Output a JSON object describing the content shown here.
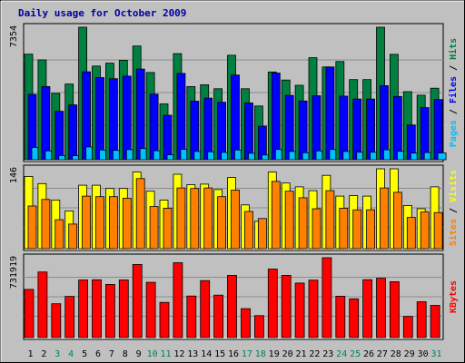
{
  "chart_data": {
    "type": "bar",
    "title": "Daily usage for October 2009",
    "x": [
      "1",
      "2",
      "3",
      "4",
      "5",
      "6",
      "7",
      "8",
      "9",
      "10",
      "11",
      "12",
      "13",
      "14",
      "15",
      "16",
      "17",
      "18",
      "19",
      "20",
      "21",
      "22",
      "23",
      "24",
      "25",
      "26",
      "27",
      "28",
      "29",
      "30",
      "31"
    ],
    "weekend_days": [
      "3",
      "4",
      "10",
      "11",
      "17",
      "18",
      "24",
      "25",
      "31"
    ],
    "panels": [
      {
        "id": "hits",
        "ymax_label": "7354",
        "ymax": 7354,
        "series": [
          {
            "name": "Hits",
            "color": "#008040",
            "values": [
              5860,
              5540,
              3680,
              4200,
              7354,
              5200,
              5360,
              5520,
              6310,
              4840,
              3100,
              5890,
              4060,
              4160,
              3940,
              5800,
              3940,
              2980,
              4870,
              4420,
              4130,
              5660,
              5150,
              5450,
              4450,
              4450,
              7354,
              5850,
              3780,
              3580,
              3970
            ]
          },
          {
            "name": "Files",
            "color": "#0000ff",
            "values": [
              3630,
              4060,
              2690,
              3040,
              4880,
              4560,
              4500,
              4640,
              5030,
              3640,
              2470,
              4790,
              3250,
              3420,
              3190,
              4700,
              3150,
              1860,
              4810,
              3570,
              3260,
              3550,
              5150,
              3530,
              3370,
              3370,
              4110,
              3510,
              1930,
              2890,
              3340
            ]
          },
          {
            "name": "Pages",
            "color": "#00c0ff",
            "values": [
              680,
              490,
              230,
              220,
              710,
              540,
              520,
              560,
              620,
              500,
              270,
              580,
              460,
              440,
              410,
              540,
              360,
              260,
              570,
              460,
              390,
              490,
              570,
              460,
              420,
              420,
              550,
              470,
              370,
              400,
              380
            ]
          }
        ],
        "legend_colors": {
          "Pages": "#00c0ff",
          "Files": "#0000ff",
          "Hits": "#008040"
        }
      },
      {
        "id": "visits",
        "ymax_label": "146",
        "ymax": 146,
        "series": [
          {
            "name": "Visits",
            "color": "#ffff00",
            "values": [
              132,
              119,
              89,
              69,
              116,
              116,
              110,
              110,
              140,
              105,
              89,
              136,
              117,
              118,
              108,
              130,
              80,
              50,
              140,
              120,
              113,
              106,
              134,
              96,
              97,
              96,
              146,
              146,
              79,
              73,
              113
            ]
          },
          {
            "name": "Sites",
            "color": "#ff8000",
            "values": [
              78,
              90,
              53,
              45,
              96,
              95,
              95,
              92,
              128,
              77,
              74,
              111,
              110,
              111,
              95,
              107,
              68,
              55,
              123,
              105,
              93,
              73,
              106,
              74,
              71,
              71,
              111,
              103,
              57,
              67,
              66
            ]
          }
        ],
        "legend_colors": {
          "Sites": "#ff8000",
          "Visits": "#ffff00"
        }
      },
      {
        "id": "kbytes",
        "ymax_label": "731919",
        "ymax": 731919,
        "series": [
          {
            "name": "KBytes",
            "color": "#ff0000",
            "values": [
              441960,
              601130,
              309900,
              377520,
              528400,
              529940,
              487150,
              528400,
              670440,
              506440,
              322780,
              686230,
              381140,
              522440,
              389250,
              570260,
              265040,
              201640,
              628060,
              570260,
              499560,
              526770,
              731919,
              379350,
              354940,
              530270,
              544040,
              512180,
              193890,
              328680,
              295650
            ]
          }
        ],
        "legend_colors": {
          "KBytes": "#ff0000"
        }
      }
    ],
    "grid": true
  }
}
